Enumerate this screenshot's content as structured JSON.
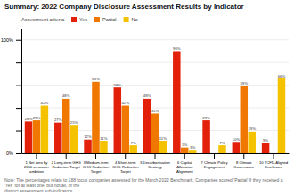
{
  "chart_data": {
    "type": "bar",
    "title": "Summary: 2022 Company Disclosure Assessment Results by Indicator",
    "categories": [
      "1 Net zero by\n2050 or sooner\nambition",
      "2 Long-term GHG\nReduction Target",
      "3 Medium-term\nGHG Reduction\nTarget",
      "4 Short-term\nGHG Reduction\nTarget",
      "5 Decarbonisation\nStrategy",
      "6 Capital\nAllocation\nAlignment",
      "7 Climate Policy\nEngagement",
      "8 Climate\nGovernance",
      "10 TCFD-Aligned\nDisclosure"
    ],
    "series": [
      {
        "name": "Yes",
        "color": "#e3200a",
        "values": [
          28,
          27,
          12,
          58,
          48,
          90,
          29,
          10,
          9
        ],
        "value_labels": [
          "28%",
          "27%",
          "12%",
          "58%",
          "48%",
          "90%",
          "29%",
          "10%",
          "9%"
        ]
      },
      {
        "name": "Partial",
        "color": "#f07800",
        "values": [
          29,
          48,
          63,
          42,
          35,
          5,
          0,
          59,
          0
        ],
        "value_labels": [
          "29%",
          "48%",
          "63%",
          "42%",
          "35%",
          "5%",
          null,
          "59%",
          null
        ]
      },
      {
        "name": "No",
        "color": "#f5c200",
        "values": [
          42,
          25,
          11,
          7,
          11,
          3,
          7,
          19,
          66
        ],
        "value_labels": [
          "42%",
          "25%",
          "11%",
          "7%",
          "11%",
          "3%",
          "7%",
          "19%",
          "66%"
        ]
      }
    ],
    "legend_title": "Assessment criteria",
    "legend": "top",
    "ylim": [
      0,
      110
    ],
    "yticks": [
      {
        "value": 0,
        "label": "0%"
      },
      {
        "value": 20,
        "label": null
      },
      {
        "value": 40,
        "label": null
      },
      {
        "value": 60,
        "label": null
      },
      {
        "value": 80,
        "label": null
      },
      {
        "value": 100,
        "label": "100%"
      }
    ],
    "grid": true,
    "data_labels": true,
    "note": "Note: The percentages relate to 188 focus companies assessed for the March 2022 Benchmark. Companies scored 'Partial' if they received a 'Yes' for at least one, but not all, of the\ndistinct assessment sub-indicators."
  }
}
